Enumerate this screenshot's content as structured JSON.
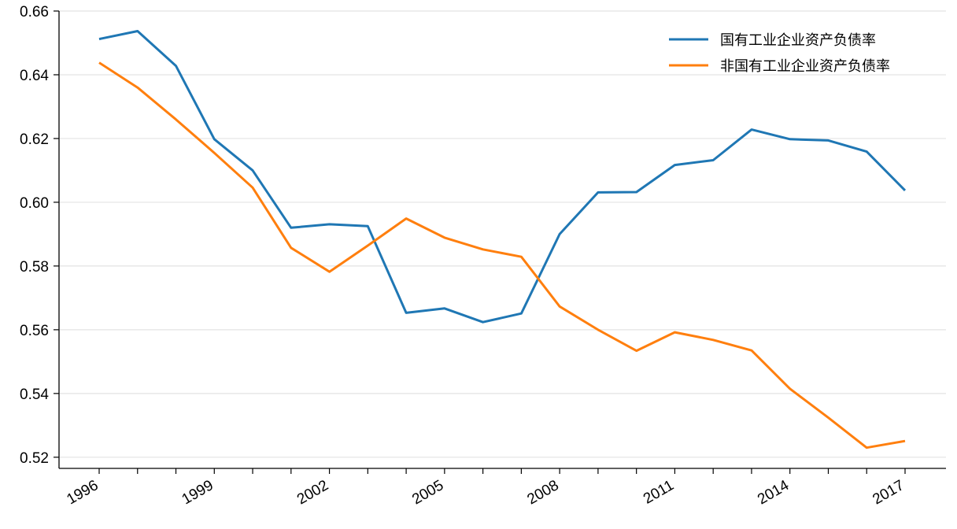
{
  "chart_data": {
    "type": "line",
    "title": "",
    "xlabel": "",
    "ylabel": "",
    "x": [
      1996,
      1997,
      1998,
      1999,
      2000,
      2001,
      2002,
      2003,
      2004,
      2005,
      2006,
      2007,
      2008,
      2009,
      2010,
      2011,
      2012,
      2013,
      2014,
      2015,
      2016,
      2017
    ],
    "x_tick_labels": [
      "1996",
      "1999",
      "2002",
      "2005",
      "2008",
      "2011",
      "2014",
      "2017"
    ],
    "y_tick_labels": [
      "0.52",
      "0.54",
      "0.56",
      "0.58",
      "0.60",
      "0.62",
      "0.64",
      "0.66"
    ],
    "xlim": [
      1995,
      2018
    ],
    "ylim": [
      0.5165,
      0.66
    ],
    "grid": "horizontal",
    "legend_position": "top-right",
    "series": [
      {
        "name": "国有工业企业资产负债率",
        "color": "#1f77b4",
        "values": [
          0.6512,
          0.6537,
          0.6428,
          0.6198,
          0.61,
          0.592,
          0.5931,
          0.5925,
          0.5653,
          0.5667,
          0.5624,
          0.5651,
          0.59,
          0.6031,
          0.6032,
          0.6117,
          0.6132,
          0.6228,
          0.6198,
          0.6194,
          0.6159,
          0.6037
        ]
      },
      {
        "name": "非国有工业企业资产负债率",
        "color": "#ff7f0e",
        "values": [
          0.6438,
          0.636,
          0.626,
          0.6155,
          0.6046,
          0.5857,
          0.5782,
          0.5864,
          0.5949,
          0.5889,
          0.5852,
          0.5829,
          0.5673,
          0.56,
          0.5534,
          0.5592,
          0.5568,
          0.5535,
          0.5415,
          0.5324,
          0.523,
          0.5251
        ]
      }
    ]
  }
}
